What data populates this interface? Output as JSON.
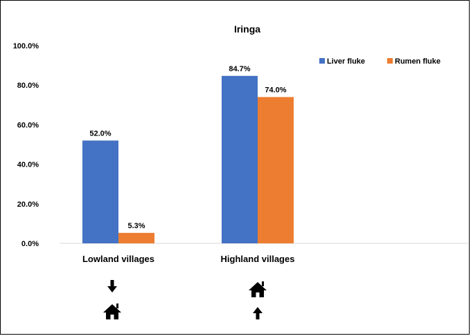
{
  "chart_data": {
    "type": "bar",
    "title": "Iringa",
    "categories": [
      "Lowland villages",
      "Highland villages"
    ],
    "series": [
      {
        "name": "Liver fluke",
        "values": [
          52.0,
          84.7
        ],
        "labels": [
          "52.0%",
          "84.7%"
        ],
        "color": "#4472C4"
      },
      {
        "name": "Rumen fluke",
        "values": [
          5.3,
          74.0
        ],
        "labels": [
          "5.3%",
          "74.0%"
        ],
        "color": "#ED7D31"
      }
    ],
    "ylim": [
      0,
      100
    ],
    "yticks": [
      "0.0%",
      "20.0%",
      "40.0%",
      "60.0%",
      "80.0%",
      "100.0%"
    ],
    "grid": false,
    "legend_position": "top-right"
  },
  "icons": [
    {
      "category": "Lowland villages",
      "icon": "down-arrow-over-house"
    },
    {
      "category": "Highland villages",
      "icon": "house-over-up-arrow"
    }
  ]
}
